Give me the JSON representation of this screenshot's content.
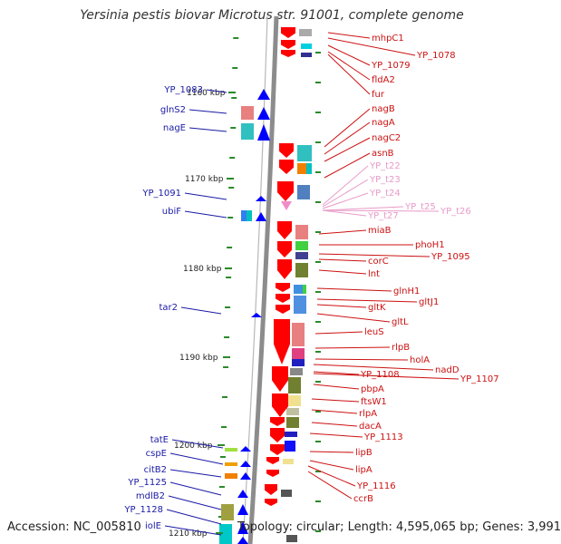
{
  "title": "Yersinia pestis biovar Microtus str. 91001, complete genome",
  "footer": {
    "accession": "Accession: NC_005810",
    "info": "Topology: circular; Length: 4,595,065 bp; Genes: 3,991"
  },
  "colors": {
    "backbone": "#8c8c8c",
    "tick": "#2a8a2a",
    "left_label": "#1a1aa6",
    "right_label": "#cc1111",
    "trna_label": "#e89ac8",
    "forward_gene": "#0000ff",
    "reverse_gene": "#ff0000",
    "trna": "#f08cc8"
  },
  "scale": {
    "unit": "kbp",
    "ticks": [
      {
        "label": "1160 kbp"
      },
      {
        "label": "1170 kbp"
      },
      {
        "label": "1180 kbp"
      },
      {
        "label": "1190 kbp"
      },
      {
        "label": "1200 kbp"
      },
      {
        "label": "1210 kbp"
      }
    ]
  },
  "left_labels": [
    {
      "text": "YP_1083"
    },
    {
      "text": "glnS2"
    },
    {
      "text": "nagE"
    },
    {
      "text": "YP_1091"
    },
    {
      "text": "ubiF"
    },
    {
      "text": "tar2"
    },
    {
      "text": "tatE"
    },
    {
      "text": "cspE"
    },
    {
      "text": "citB2"
    },
    {
      "text": "YP_1125"
    },
    {
      "text": "mdlB2"
    },
    {
      "text": "YP_1128"
    },
    {
      "text": "iolE"
    }
  ],
  "right_labels": [
    {
      "text": "mhpC1"
    },
    {
      "text": "YP_1078"
    },
    {
      "text": "YP_1079"
    },
    {
      "text": "fldA2"
    },
    {
      "text": "fur"
    },
    {
      "text": "nagB"
    },
    {
      "text": "nagA"
    },
    {
      "text": "nagC2"
    },
    {
      "text": "asnB"
    },
    {
      "text": "YP_t22"
    },
    {
      "text": "YP_t23"
    },
    {
      "text": "YP_t24"
    },
    {
      "text": "YP_t25"
    },
    {
      "text": "YP_t26"
    },
    {
      "text": "YP_t27"
    },
    {
      "text": "miaB"
    },
    {
      "text": "phoH1"
    },
    {
      "text": "YP_1095"
    },
    {
      "text": "corC"
    },
    {
      "text": "lnt"
    },
    {
      "text": "glnH1"
    },
    {
      "text": "gltJ1"
    },
    {
      "text": "gltK"
    },
    {
      "text": "gltL"
    },
    {
      "text": "leuS"
    },
    {
      "text": "rlpB"
    },
    {
      "text": "holA"
    },
    {
      "text": "nadD"
    },
    {
      "text": "YP_1108"
    },
    {
      "text": "YP_1107"
    },
    {
      "text": "pbpA"
    },
    {
      "text": "ftsW1"
    },
    {
      "text": "rlpA"
    },
    {
      "text": "dacA"
    },
    {
      "text": "YP_1113"
    },
    {
      "text": "lipB"
    },
    {
      "text": "lipA"
    },
    {
      "text": "YP_1116"
    },
    {
      "text": "ccrB"
    }
  ]
}
